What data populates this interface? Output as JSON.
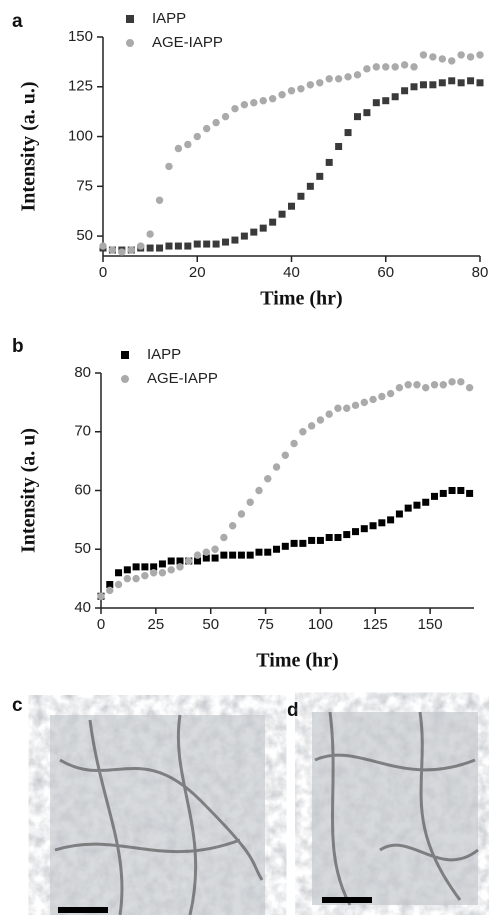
{
  "chart_data": [
    {
      "type": "scatter",
      "ylabel": "Intensity (a. u.)",
      "xlabel": "Time (hr)",
      "xlim": [
        0,
        80
      ],
      "xticks": [
        0,
        20,
        40,
        60,
        80
      ],
      "ylim": [
        40,
        150
      ],
      "yticks": [
        50,
        75,
        100,
        125,
        150
      ],
      "grid": false,
      "x": [
        0,
        2,
        4,
        6,
        8,
        10,
        12,
        14,
        16,
        18,
        20,
        22,
        24,
        26,
        28,
        30,
        32,
        34,
        36,
        38,
        40,
        42,
        44,
        46,
        48,
        50,
        52,
        54,
        56,
        58,
        60,
        62,
        64,
        66,
        68,
        70,
        72,
        74,
        76,
        78,
        80
      ],
      "series": [
        {
          "name": "IAPP",
          "color": "#3a3a3a",
          "marker": "square",
          "values": [
            44,
            43,
            43,
            43,
            44,
            44,
            44,
            45,
            45,
            45,
            46,
            46,
            46,
            47,
            48,
            50,
            52,
            54,
            57,
            61,
            65,
            70,
            75,
            80,
            87,
            95,
            102,
            110,
            112,
            117,
            118,
            120,
            123,
            125,
            126,
            126,
            127,
            128,
            127,
            128,
            127
          ]
        },
        {
          "name": "AGE-IAPP",
          "color": "#aaaaaa",
          "marker": "circle",
          "values": [
            45,
            43,
            42,
            43,
            45,
            51,
            68,
            85,
            94,
            96,
            100,
            104,
            107,
            110,
            114,
            116,
            117,
            118,
            119,
            121,
            123,
            124,
            126,
            127,
            129,
            129,
            130,
            131,
            134,
            135,
            135,
            135,
            136,
            135,
            141,
            140,
            139,
            138,
            141,
            140,
            141
          ]
        }
      ]
    },
    {
      "type": "scatter",
      "ylabel": "Intensity (a. u)",
      "xlabel": "Time (hr)",
      "xlim": [
        0,
        170
      ],
      "xticks": [
        0,
        25,
        50,
        75,
        100,
        125,
        150
      ],
      "ylim": [
        40,
        80
      ],
      "yticks": [
        40,
        50,
        60,
        70,
        80
      ],
      "grid": false,
      "x": [
        0,
        4,
        8,
        12,
        16,
        20,
        24,
        28,
        32,
        36,
        40,
        44,
        48,
        52,
        56,
        60,
        64,
        68,
        72,
        76,
        80,
        84,
        88,
        92,
        96,
        100,
        104,
        108,
        112,
        116,
        120,
        124,
        128,
        132,
        136,
        140,
        144,
        148,
        152,
        156,
        160,
        164,
        168
      ],
      "series": [
        {
          "name": "IAPP",
          "color": "#000000",
          "marker": "square",
          "values": [
            42,
            44,
            46,
            46.5,
            47,
            47,
            47,
            47.5,
            48,
            48,
            48,
            48,
            48.5,
            48.5,
            49,
            49,
            49,
            49,
            49.5,
            49.5,
            50,
            50.5,
            51,
            51,
            51.5,
            51.5,
            52,
            52,
            52.5,
            53,
            53.5,
            54,
            54.5,
            55,
            56,
            57,
            57.5,
            58,
            59,
            59.5,
            60,
            60,
            59.5
          ]
        },
        {
          "name": "AGE-IAPP",
          "color": "#aaaaaa",
          "marker": "circle",
          "values": [
            42,
            43,
            44,
            45,
            45,
            45.5,
            46,
            46,
            46.5,
            47,
            48,
            49,
            49.5,
            50,
            52,
            54,
            56,
            58,
            60,
            62,
            64,
            66,
            68,
            70,
            71,
            72,
            73,
            74,
            74,
            74.5,
            75,
            75.5,
            76,
            76.5,
            77.5,
            78,
            78,
            77.5,
            78,
            78,
            78.5,
            78.5,
            77.5
          ]
        }
      ]
    }
  ],
  "panel_labels": [
    "a",
    "b",
    "c",
    "d"
  ]
}
